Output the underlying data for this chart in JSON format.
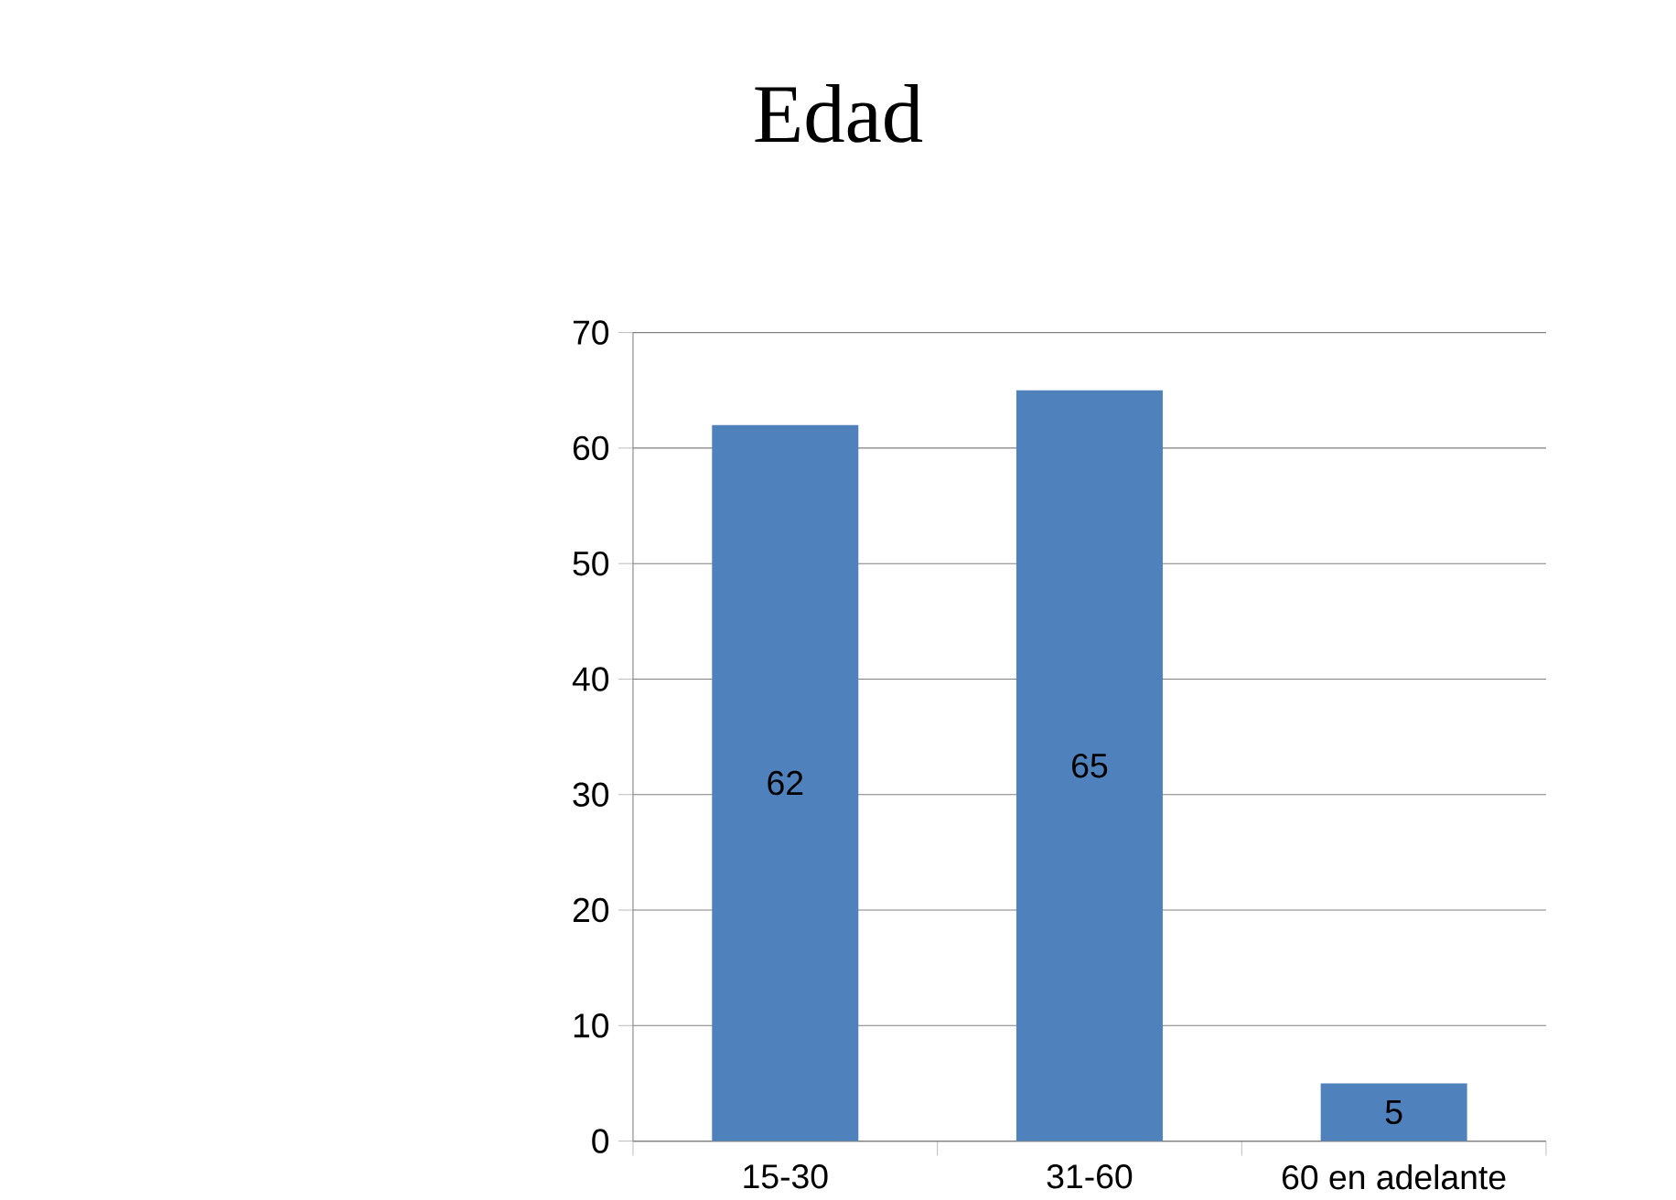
{
  "chart_data": {
    "type": "bar",
    "title": "Edad",
    "categories": [
      "15-30",
      "31-60",
      "60 en adelante"
    ],
    "values": [
      62,
      65,
      5
    ],
    "color": "#4f81bd",
    "ylim": [
      0,
      70
    ],
    "yticks": [
      0,
      10,
      20,
      30,
      40,
      50,
      60,
      70
    ],
    "grid": "y",
    "data_labels": true
  }
}
